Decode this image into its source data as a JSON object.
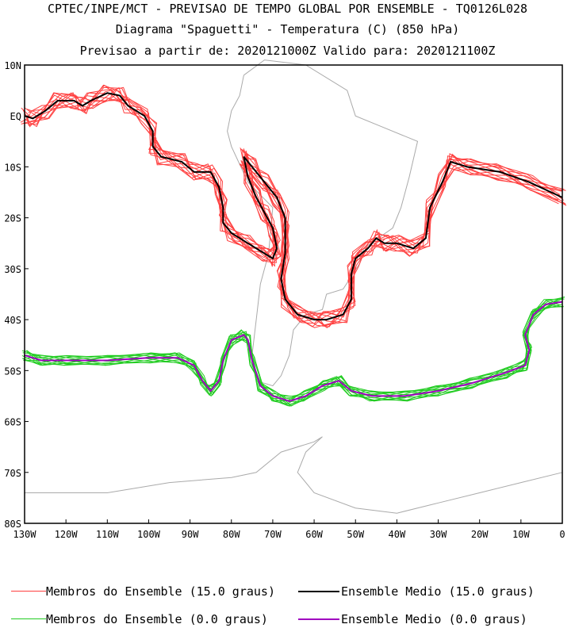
{
  "chart_data": {
    "type": "line",
    "title_lines": [
      "CPTEC/INPE/MCT - PREVISAO DE TEMPO GLOBAL POR ENSEMBLE - TQ0126L028",
      "Diagrama \"Spaguetti\" - Temperatura (C) (850 hPa)",
      "Previsao a partir de: 2020121000Z  Valido para: 2020121100Z"
    ],
    "x_range": [
      -130,
      0
    ],
    "y_range": [
      -80,
      10
    ],
    "x_ticks": [
      {
        "v": -130,
        "label": "130W"
      },
      {
        "v": -120,
        "label": "120W"
      },
      {
        "v": -110,
        "label": "110W"
      },
      {
        "v": -100,
        "label": "100W"
      },
      {
        "v": -90,
        "label": "90W"
      },
      {
        "v": -80,
        "label": "80W"
      },
      {
        "v": -70,
        "label": "70W"
      },
      {
        "v": -60,
        "label": "60W"
      },
      {
        "v": -50,
        "label": "50W"
      },
      {
        "v": -40,
        "label": "40W"
      },
      {
        "v": -30,
        "label": "30W"
      },
      {
        "v": -20,
        "label": "20W"
      },
      {
        "v": -10,
        "label": "10W"
      },
      {
        "v": 0,
        "label": "0"
      }
    ],
    "y_ticks": [
      {
        "v": 10,
        "label": "10N"
      },
      {
        "v": 0,
        "label": "EQ"
      },
      {
        "v": -10,
        "label": "10S"
      },
      {
        "v": -20,
        "label": "20S"
      },
      {
        "v": -30,
        "label": "30S"
      },
      {
        "v": -40,
        "label": "40S"
      },
      {
        "v": -50,
        "label": "50S"
      },
      {
        "v": -60,
        "label": "60S"
      },
      {
        "v": -70,
        "label": "70S"
      },
      {
        "v": -80,
        "label": "80S"
      }
    ],
    "legend": [
      {
        "label": "Membros do Ensemble (15.0 graus)",
        "color": "#ff4040"
      },
      {
        "label": "Ensemble Medio (15.0 graus)",
        "color": "#000000"
      },
      {
        "label": "Membros do Ensemble (0.0 graus)",
        "color": "#22cc22"
      },
      {
        "label": "Ensemble Medio (0.0 graus)",
        "color": "#a000c0"
      }
    ],
    "colors": {
      "member15": "#ff4040",
      "mean15": "#000000",
      "member0": "#22cc22",
      "mean0": "#a000c0",
      "coast": "#aaaaaa"
    },
    "series": [
      {
        "name": "Ensemble Medio (15.0 graus)",
        "points": [
          [
            -130,
            0
          ],
          [
            -128,
            -0.5
          ],
          [
            -125,
            1
          ],
          [
            -122,
            3
          ],
          [
            -118,
            3
          ],
          [
            -116,
            2
          ],
          [
            -114,
            3
          ],
          [
            -110,
            4.5
          ],
          [
            -107,
            4
          ],
          [
            -105,
            2
          ],
          [
            -101,
            0
          ],
          [
            -99,
            -3
          ],
          [
            -99,
            -6
          ],
          [
            -97,
            -8
          ],
          [
            -92,
            -9
          ],
          [
            -89,
            -11
          ],
          [
            -85,
            -11
          ],
          [
            -83,
            -14
          ],
          [
            -82,
            -18
          ],
          [
            -82,
            -21
          ],
          [
            -80,
            -23
          ],
          [
            -76,
            -25
          ],
          [
            -72,
            -27
          ],
          [
            -70,
            -28
          ],
          [
            -69,
            -26
          ],
          [
            -70,
            -22
          ],
          [
            -72,
            -19
          ],
          [
            -74,
            -16
          ],
          [
            -76,
            -12
          ],
          [
            -77,
            -8
          ],
          [
            -75,
            -10
          ],
          [
            -72,
            -13
          ],
          [
            -69,
            -16
          ],
          [
            -67,
            -20
          ],
          [
            -67,
            -27
          ],
          [
            -68,
            -32
          ],
          [
            -67,
            -36
          ],
          [
            -64,
            -39
          ],
          [
            -60,
            -40
          ],
          [
            -57,
            -40
          ],
          [
            -53,
            -39
          ],
          [
            -51,
            -36
          ],
          [
            -51,
            -31
          ],
          [
            -50,
            -28
          ],
          [
            -47,
            -26
          ],
          [
            -45,
            -24
          ],
          [
            -43,
            -25
          ],
          [
            -40,
            -25
          ],
          [
            -36,
            -26
          ],
          [
            -33,
            -24
          ],
          [
            -32,
            -18
          ],
          [
            -29,
            -13
          ],
          [
            -27,
            -9
          ],
          [
            -23,
            -10
          ],
          [
            -15,
            -11
          ],
          [
            -8,
            -13
          ],
          [
            0,
            -16
          ]
        ]
      },
      {
        "name": "Ensemble Medio (0.0 graus)",
        "points": [
          [
            -130,
            -47
          ],
          [
            -126,
            -48
          ],
          [
            -120,
            -48
          ],
          [
            -110,
            -48
          ],
          [
            -100,
            -47.5
          ],
          [
            -93,
            -47.5
          ],
          [
            -89,
            -49
          ],
          [
            -87,
            -52
          ],
          [
            -85,
            -54
          ],
          [
            -83,
            -52
          ],
          [
            -82,
            -48
          ],
          [
            -80,
            -44
          ],
          [
            -77,
            -43
          ],
          [
            -76,
            -44
          ],
          [
            -75,
            -48
          ],
          [
            -73,
            -53
          ],
          [
            -70,
            -55
          ],
          [
            -66,
            -56
          ],
          [
            -62,
            -55
          ],
          [
            -58,
            -53
          ],
          [
            -54,
            -52
          ],
          [
            -51,
            -54
          ],
          [
            -46,
            -55
          ],
          [
            -38,
            -55
          ],
          [
            -30,
            -54
          ],
          [
            -22,
            -52.5
          ],
          [
            -14,
            -50.5
          ],
          [
            -9,
            -49
          ],
          [
            -8,
            -46
          ],
          [
            -9,
            -43
          ],
          [
            -7,
            -39
          ],
          [
            -4,
            -37
          ],
          [
            0,
            -36.5
          ]
        ]
      }
    ]
  }
}
